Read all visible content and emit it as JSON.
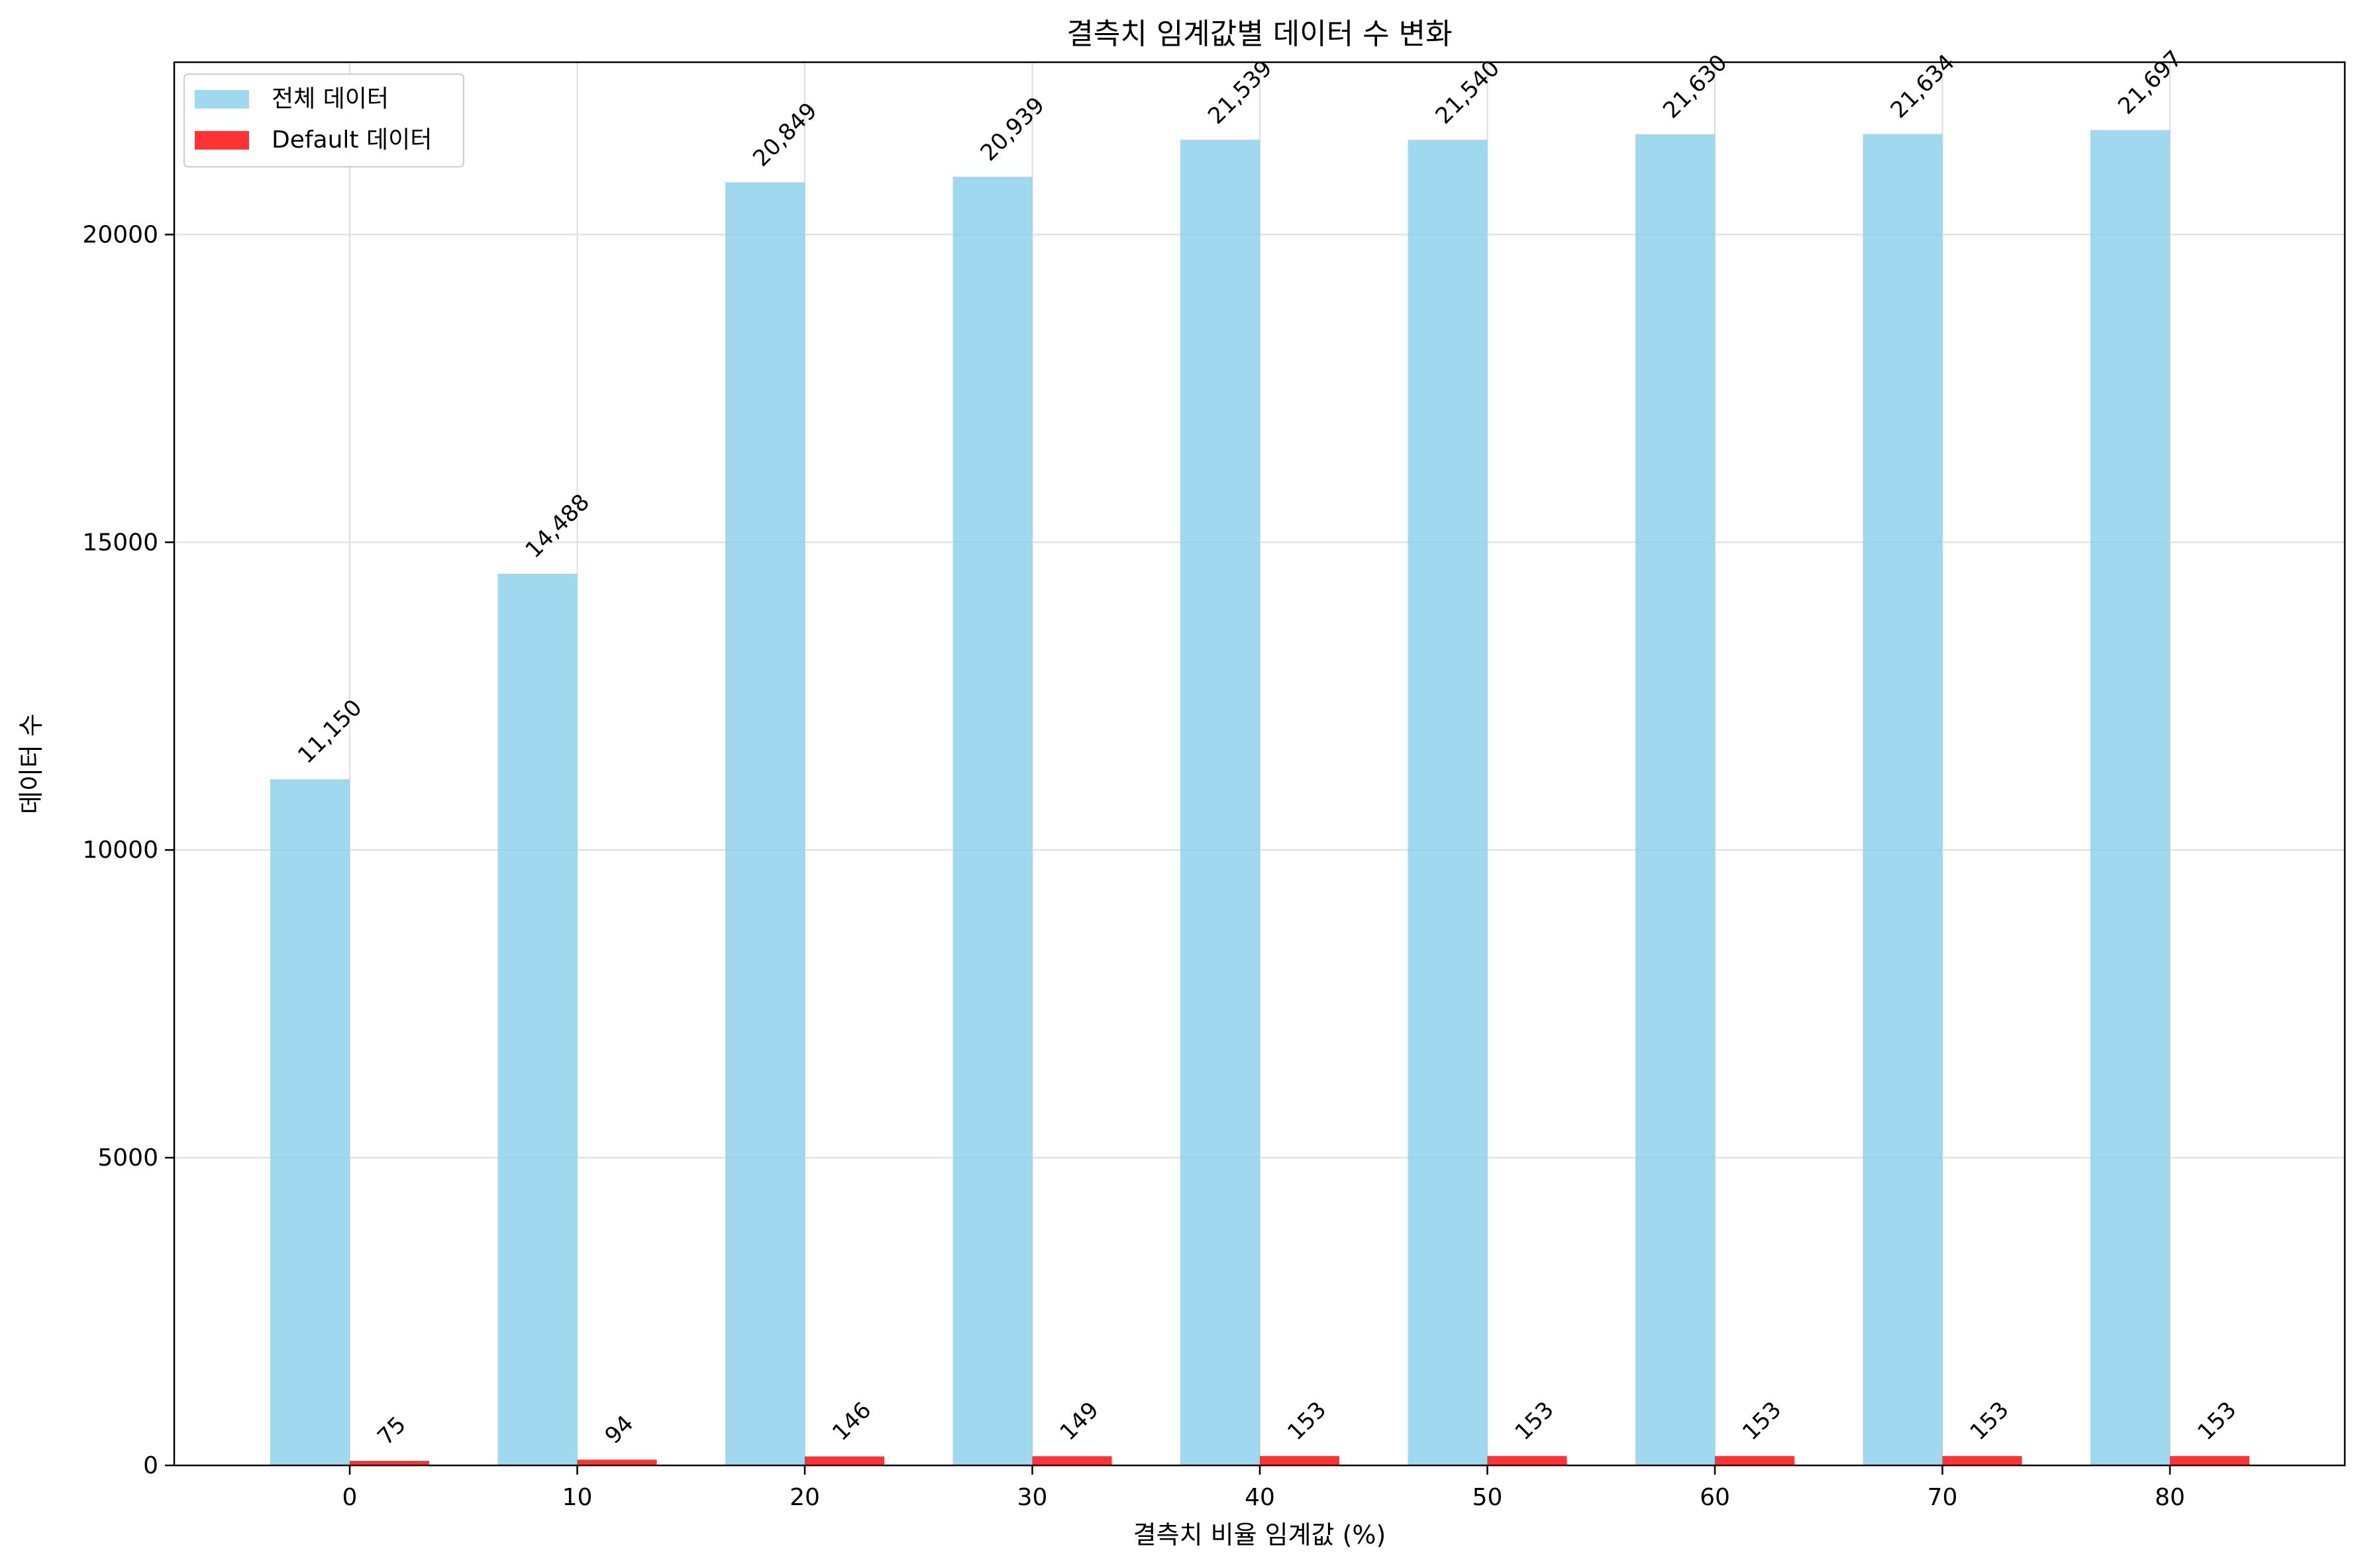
{
  "chart_data": {
    "type": "bar",
    "title": "결측치 임계값별 데이터 수 변화",
    "xlabel": "결측치 비율 임계값 (%)",
    "ylabel": "데이터 수",
    "categories": [
      "0",
      "10",
      "20",
      "30",
      "40",
      "50",
      "60",
      "70",
      "80"
    ],
    "series": [
      {
        "name": "전체 데이터",
        "color": "#87CEEB",
        "values": [
          11150,
          14488,
          20849,
          20939,
          21539,
          21540,
          21630,
          21634,
          21697
        ],
        "labels": [
          "11,150",
          "14,488",
          "20,849",
          "20,939",
          "21,539",
          "21,540",
          "21,630",
          "21,634",
          "21,697"
        ]
      },
      {
        "name": "Default 데이터",
        "color": "#FF0000",
        "values": [
          75,
          94,
          146,
          149,
          153,
          153,
          153,
          153,
          153
        ],
        "labels": [
          "75",
          "94",
          "146",
          "149",
          "153",
          "153",
          "153",
          "153",
          "153"
        ]
      }
    ],
    "yticks": [
      "0",
      "5000",
      "10000",
      "15000",
      "20000"
    ],
    "ylim": [
      0,
      22800
    ],
    "grid": true,
    "legend_position": "top-left"
  }
}
